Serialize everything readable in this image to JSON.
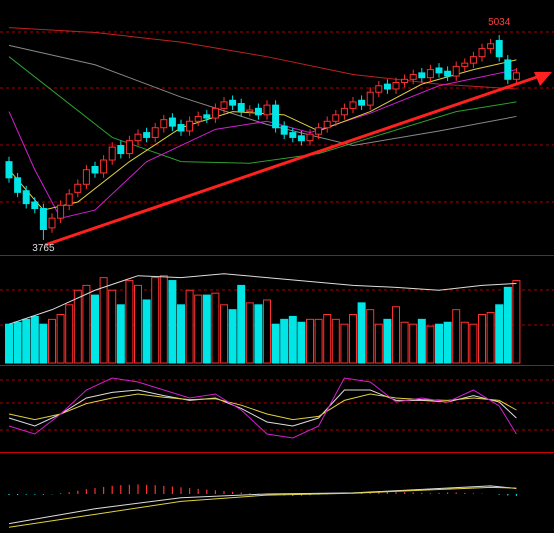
{
  "chart_data": [
    {
      "type": "candlestick",
      "up_color": "#ff3030",
      "down_color": "#00e5e5",
      "ylim": [
        3672,
        5251
      ],
      "open": [
        4250,
        4150,
        4070,
        4000,
        3960,
        3840,
        3900,
        3980,
        4060,
        4110,
        4220,
        4180,
        4260,
        4350,
        4300,
        4380,
        4430,
        4400,
        4460,
        4520,
        4480,
        4440,
        4500,
        4540,
        4520,
        4580,
        4630,
        4610,
        4560,
        4580,
        4540,
        4600,
        4470,
        4430,
        4410,
        4380,
        4420,
        4460,
        4500,
        4540,
        4580,
        4630,
        4600,
        4680,
        4730,
        4700,
        4740,
        4760,
        4800,
        4770,
        4830,
        4810,
        4780,
        4840,
        4860,
        4900,
        4950,
        5000,
        4880,
        4760
      ],
      "high": [
        4280,
        4180,
        4100,
        4030,
        3990,
        3930,
        4010,
        4080,
        4140,
        4230,
        4250,
        4290,
        4370,
        4380,
        4410,
        4450,
        4460,
        4490,
        4540,
        4550,
        4510,
        4530,
        4560,
        4570,
        4610,
        4650,
        4660,
        4640,
        4600,
        4610,
        4630,
        4630,
        4500,
        4460,
        4440,
        4450,
        4490,
        4530,
        4570,
        4610,
        4650,
        4660,
        4710,
        4750,
        4760,
        4770,
        4790,
        4820,
        4830,
        4850,
        4860,
        4840,
        4870,
        4890,
        4930,
        4980,
        5010,
        5034,
        4910,
        4830
      ],
      "low": [
        4120,
        4030,
        3960,
        3930,
        3765,
        3810,
        3870,
        3950,
        4030,
        4080,
        4150,
        4150,
        4230,
        4270,
        4270,
        4350,
        4370,
        4370,
        4430,
        4440,
        4410,
        4410,
        4470,
        4490,
        4490,
        4550,
        4570,
        4530,
        4530,
        4510,
        4510,
        4430,
        4390,
        4370,
        4350,
        4350,
        4390,
        4430,
        4470,
        4510,
        4550,
        4570,
        4570,
        4650,
        4670,
        4670,
        4710,
        4730,
        4740,
        4740,
        4770,
        4750,
        4750,
        4810,
        4830,
        4870,
        4920,
        4870,
        4730,
        4730
      ],
      "close": [
        4150,
        4060,
        3990,
        3960,
        3830,
        3900,
        3980,
        4050,
        4110,
        4200,
        4180,
        4260,
        4340,
        4300,
        4380,
        4420,
        4400,
        4460,
        4510,
        4470,
        4440,
        4500,
        4530,
        4520,
        4580,
        4620,
        4600,
        4560,
        4570,
        4540,
        4600,
        4460,
        4420,
        4400,
        4380,
        4420,
        4460,
        4500,
        4540,
        4580,
        4620,
        4600,
        4680,
        4720,
        4700,
        4740,
        4760,
        4790,
        4770,
        4820,
        4800,
        4780,
        4840,
        4860,
        4900,
        4950,
        4980,
        4900,
        4760,
        4800
      ],
      "series": [
        {
          "color": "#c02020",
          "x": [
            0,
            10,
            20,
            30,
            40,
            50,
            59
          ],
          "values": [
            5080,
            5050,
            4990,
            4900,
            4790,
            4730,
            4700
          ]
        },
        {
          "color": "#888888",
          "x": [
            0,
            10,
            20,
            30,
            40,
            50,
            59
          ],
          "values": [
            4970,
            4850,
            4650,
            4480,
            4350,
            4440,
            4530
          ]
        },
        {
          "color": "#2e9e2e",
          "x": [
            0,
            6,
            12,
            20,
            28,
            36,
            44,
            52,
            59
          ],
          "values": [
            4900,
            4650,
            4400,
            4250,
            4240,
            4300,
            4430,
            4560,
            4620
          ]
        },
        {
          "color": "#d020d0",
          "x": [
            0,
            3,
            6,
            10,
            16,
            24,
            30,
            35,
            42,
            50,
            59
          ],
          "values": [
            4560,
            4200,
            3900,
            3950,
            4250,
            4450,
            4500,
            4430,
            4550,
            4720,
            4820
          ]
        },
        {
          "color": "#e0d040",
          "x": [
            0,
            4,
            8,
            14,
            20,
            26,
            32,
            36,
            42,
            48,
            54,
            59
          ],
          "values": [
            4200,
            3950,
            4000,
            4250,
            4460,
            4560,
            4540,
            4440,
            4560,
            4730,
            4820,
            4880
          ]
        }
      ]
    },
    {
      "type": "volume",
      "ylim": [
        0,
        100
      ],
      "values": [
        40,
        42,
        45,
        48,
        40,
        45,
        50,
        60,
        75,
        80,
        70,
        88,
        75,
        60,
        85,
        80,
        65,
        88,
        90,
        85,
        60,
        75,
        70,
        70,
        72,
        60,
        55,
        80,
        62,
        60,
        65,
        40,
        45,
        48,
        42,
        45,
        45,
        50,
        45,
        40,
        50,
        62,
        55,
        40,
        45,
        58,
        42,
        40,
        45,
        38,
        40,
        42,
        55,
        42,
        40,
        50,
        52,
        60,
        78,
        85
      ],
      "series": [
        {
          "color": "#dddddd",
          "x": [
            0,
            5,
            10,
            15,
            20,
            25,
            30,
            35,
            40,
            45,
            50,
            55,
            59
          ],
          "values": [
            40,
            55,
            75,
            90,
            88,
            92,
            88,
            84,
            80,
            78,
            75,
            80,
            82
          ]
        }
      ]
    },
    {
      "type": "line",
      "ylim": [
        0,
        100
      ],
      "series": [
        {
          "color": "#dddddd",
          "x": [
            0,
            3,
            6,
            9,
            12,
            15,
            18,
            21,
            24,
            27,
            30,
            33,
            36,
            39,
            42,
            45,
            48,
            51,
            54,
            57,
            59
          ],
          "values": [
            40,
            30,
            45,
            65,
            72,
            75,
            68,
            62,
            65,
            52,
            35,
            30,
            40,
            75,
            75,
            62,
            62,
            60,
            68,
            60,
            40
          ]
        },
        {
          "color": "#e0d040",
          "x": [
            0,
            3,
            6,
            9,
            12,
            15,
            18,
            21,
            24,
            27,
            30,
            33,
            36,
            39,
            42,
            45,
            48,
            51,
            54,
            57,
            59
          ],
          "values": [
            45,
            38,
            45,
            58,
            65,
            70,
            66,
            63,
            64,
            56,
            45,
            38,
            42,
            62,
            70,
            65,
            63,
            62,
            65,
            62,
            50
          ]
        },
        {
          "color": "#d020d0",
          "x": [
            0,
            3,
            6,
            9,
            12,
            15,
            18,
            21,
            24,
            27,
            30,
            33,
            36,
            39,
            42,
            45,
            48,
            51,
            54,
            57,
            59
          ],
          "values": [
            30,
            20,
            45,
            75,
            90,
            85,
            75,
            65,
            70,
            50,
            20,
            15,
            30,
            90,
            85,
            60,
            65,
            60,
            75,
            55,
            20
          ]
        }
      ]
    },
    {
      "type": "bar",
      "ylim": [
        -100,
        100
      ],
      "up_color": "#ff3030",
      "down_color": "#00e5e5",
      "values": [
        -3,
        -3,
        -2,
        -2,
        -2,
        -1,
        2,
        5,
        9,
        13,
        16,
        19,
        22,
        24,
        25,
        26,
        25,
        24,
        22,
        20,
        18,
        16,
        14,
        12,
        10,
        8,
        6,
        4,
        2,
        1,
        0,
        -2,
        -4,
        -5,
        -4,
        -3,
        -2,
        -1,
        1,
        2,
        3,
        4,
        5,
        6,
        6,
        5,
        5,
        4,
        3,
        2,
        3,
        4,
        4,
        3,
        2,
        1,
        0,
        -2,
        -4,
        -5
      ],
      "series": [
        {
          "color": "#dddddd",
          "x": [
            0,
            10,
            20,
            30,
            40,
            50,
            56,
            59
          ],
          "values": [
            -80,
            -40,
            -10,
            0,
            3,
            15,
            22,
            15
          ]
        },
        {
          "color": "#e0d040",
          "x": [
            0,
            10,
            20,
            30,
            40,
            50,
            56,
            59
          ],
          "values": [
            -90,
            -55,
            -20,
            -3,
            2,
            12,
            18,
            16
          ]
        }
      ]
    }
  ]
}
